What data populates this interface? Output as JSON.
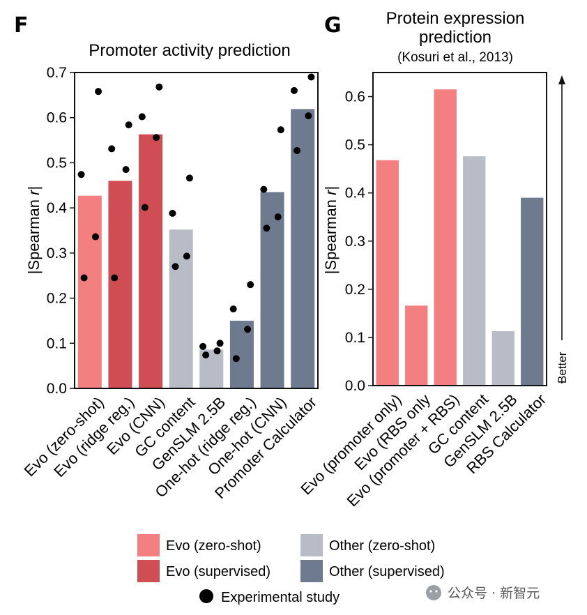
{
  "panels": {
    "F": {
      "letter": "F",
      "title": "Promoter activity prediction",
      "ylabel_prefix": "|Spearman ",
      "ylabel_italic": "r",
      "ylabel_suffix": "|"
    },
    "G": {
      "letter": "G",
      "title_line1": "Protein expression",
      "title_line2": "prediction",
      "subtitle": "(Kosuri et al., 2013)",
      "ylabel_prefix": "|Spearman ",
      "ylabel_italic": "r",
      "ylabel_suffix": "|",
      "better_label": "Better"
    }
  },
  "legend": {
    "items": [
      {
        "label": "Evo (zero-shot)",
        "color": "#f47f80"
      },
      {
        "label": "Other (zero-shot)",
        "color": "#b8bcc6"
      },
      {
        "label": "Evo (supervised)",
        "color": "#d04e53"
      },
      {
        "label": "Other (supervised)",
        "color": "#6e7a8e"
      }
    ],
    "dot_label": "Experimental study"
  },
  "watermark": "公众号 · 新智元",
  "chart_data": [
    {
      "type": "bar",
      "title": "Promoter activity prediction",
      "ylabel": "|Spearman r|",
      "ylim": [
        0,
        0.7
      ],
      "yticks": [
        "0.0",
        "0.1",
        "0.2",
        "0.3",
        "0.4",
        "0.5",
        "0.6",
        "0.7"
      ],
      "categories": [
        "Evo (zero-shot)",
        "Evo (ridge reg.)",
        "Evo (CNN)",
        "GC content",
        "GenSLM 2.5B",
        "One-hot (ridge reg.)",
        "One-hot (CNN)",
        "Promoter Calculator"
      ],
      "values": [
        0.427,
        0.46,
        0.563,
        0.352,
        0.086,
        0.15,
        0.435,
        0.619
      ],
      "colors": [
        "#f47f80",
        "#d04e53",
        "#d04e53",
        "#b8bcc6",
        "#b8bcc6",
        "#6e7a8e",
        "#6e7a8e",
        "#6e7a8e"
      ],
      "points": [
        [
          0.658,
          0.474,
          0.336,
          0.245
        ],
        [
          0.584,
          0.531,
          0.485,
          0.245
        ],
        [
          0.668,
          0.602,
          0.556,
          0.401
        ],
        [
          0.466,
          0.388,
          0.293,
          0.27
        ],
        [
          0.1,
          0.093,
          0.083,
          0.074
        ],
        [
          0.23,
          0.176,
          0.131,
          0.066
        ],
        [
          0.573,
          0.441,
          0.38,
          0.355
        ],
        [
          0.69,
          0.66,
          0.604,
          0.527
        ]
      ]
    },
    {
      "type": "bar",
      "title": "Protein expression prediction",
      "subtitle": "(Kosuri et al., 2013)",
      "ylabel": "|Spearman r|",
      "ylim": [
        0,
        0.65
      ],
      "yticks": [
        "0.0",
        "0.1",
        "0.2",
        "0.3",
        "0.4",
        "0.5",
        "0.6"
      ],
      "categories": [
        "Evo (promoter only)",
        "Evo (RBS only",
        "Evo (promoter + RBS)",
        "GC content",
        "GenSLM 2.5B",
        "RBS Calculator"
      ],
      "values": [
        0.468,
        0.166,
        0.615,
        0.476,
        0.113,
        0.39
      ],
      "colors": [
        "#f47f80",
        "#f47f80",
        "#f47f80",
        "#b8bcc6",
        "#b8bcc6",
        "#6e7a8e"
      ]
    }
  ]
}
